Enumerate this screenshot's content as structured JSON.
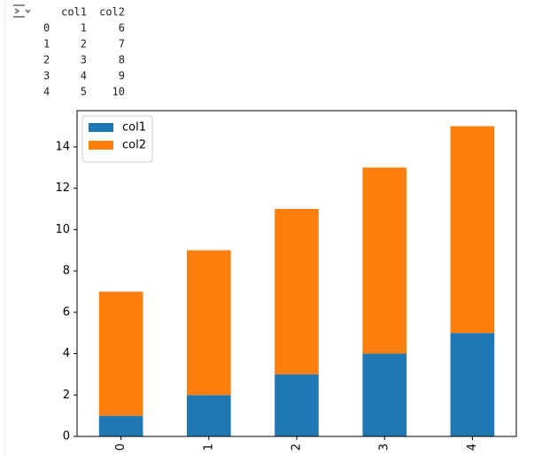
{
  "table": {
    "columns": [
      "col1",
      "col2"
    ],
    "rows": [
      [
        "0",
        1,
        6
      ],
      [
        "1",
        2,
        7
      ],
      [
        "2",
        3,
        8
      ],
      [
        "3",
        4,
        9
      ],
      [
        "4",
        5,
        10
      ]
    ]
  },
  "chart_data": {
    "type": "bar",
    "stacked": true,
    "categories": [
      "0",
      "1",
      "2",
      "3",
      "4"
    ],
    "series": [
      {
        "name": "col1",
        "color": "#1f77b4",
        "values": [
          1,
          2,
          3,
          4,
          5
        ]
      },
      {
        "name": "col2",
        "color": "#ff7f0e",
        "values": [
          6,
          7,
          8,
          9,
          10
        ]
      }
    ],
    "ylim": [
      0,
      15.75
    ],
    "yticks": [
      0,
      2,
      4,
      6,
      8,
      10,
      12,
      14
    ],
    "legend": "upper left"
  }
}
